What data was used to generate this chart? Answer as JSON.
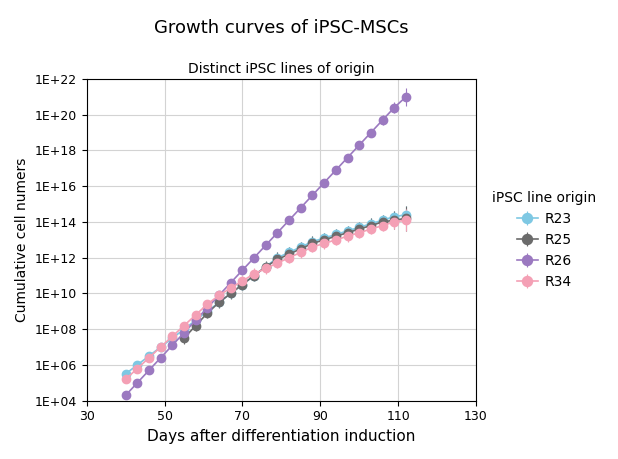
{
  "title": "Growth curves of iPSC-MSCs",
  "subtitle": "Distinct iPSC lines of origin",
  "xlabel": "Days after differentiation induction",
  "ylabel": "Cumulative cell numers",
  "xlim": [
    30,
    130
  ],
  "ylim_log": [
    4,
    22
  ],
  "xticks": [
    30,
    50,
    70,
    90,
    110,
    130
  ],
  "ytick_exponents": [
    4,
    6,
    8,
    10,
    12,
    14,
    16,
    18,
    20,
    22
  ],
  "colors": {
    "R23": "#7EC8E3",
    "R25": "#6B6B6B",
    "R26": "#9B79C0",
    "R34": "#F4A0B5"
  },
  "legend_title": "iPSC line origin",
  "lines": {
    "R23": {
      "x": [
        40,
        43,
        46,
        49,
        52,
        55,
        58,
        61,
        64,
        67,
        70,
        73,
        76,
        79,
        82,
        85,
        88,
        91,
        94,
        97,
        100,
        103,
        106,
        109,
        112
      ],
      "y_log": [
        5.5,
        6.0,
        6.5,
        7.0,
        7.5,
        8.0,
        8.5,
        9.0,
        9.5,
        10.0,
        10.5,
        11.0,
        11.5,
        12.0,
        12.3,
        12.6,
        12.9,
        13.1,
        13.3,
        13.5,
        13.7,
        13.9,
        14.1,
        14.3,
        14.4
      ],
      "yerr_log": [
        0.2,
        0.2,
        0.2,
        0.2,
        0.2,
        0.2,
        0.2,
        0.2,
        0.2,
        0.2,
        0.2,
        0.2,
        0.2,
        0.3,
        0.3,
        0.3,
        0.3,
        0.3,
        0.3,
        0.3,
        0.3,
        0.3,
        0.3,
        0.3,
        0.5
      ]
    },
    "R25": {
      "x": [
        55,
        58,
        61,
        64,
        67,
        70,
        73,
        76,
        79,
        82,
        85,
        88,
        91,
        94,
        97,
        100,
        103,
        106,
        109,
        112
      ],
      "y_log": [
        7.5,
        8.2,
        8.9,
        9.5,
        10.0,
        10.5,
        11.0,
        11.5,
        11.9,
        12.2,
        12.5,
        12.8,
        13.0,
        13.2,
        13.4,
        13.6,
        13.8,
        14.0,
        14.1,
        14.2
      ],
      "yerr_log": [
        0.3,
        0.3,
        0.3,
        0.3,
        0.3,
        0.3,
        0.3,
        0.3,
        0.4,
        0.4,
        0.4,
        0.4,
        0.4,
        0.4,
        0.4,
        0.4,
        0.4,
        0.4,
        0.5,
        0.7
      ]
    },
    "R26": {
      "x": [
        40,
        43,
        46,
        49,
        52,
        55,
        58,
        61,
        64,
        67,
        70,
        73,
        76,
        79,
        82,
        85,
        88,
        91,
        94,
        97,
        100,
        103,
        106,
        109,
        112
      ],
      "y_log": [
        4.3,
        5.0,
        5.7,
        6.4,
        7.1,
        7.8,
        8.5,
        9.2,
        9.9,
        10.6,
        11.3,
        12.0,
        12.7,
        13.4,
        14.1,
        14.8,
        15.5,
        16.2,
        16.9,
        17.6,
        18.3,
        19.0,
        19.7,
        20.4,
        21.0
      ],
      "yerr_log": [
        0.2,
        0.2,
        0.2,
        0.2,
        0.2,
        0.2,
        0.2,
        0.2,
        0.2,
        0.2,
        0.2,
        0.2,
        0.2,
        0.2,
        0.2,
        0.2,
        0.2,
        0.2,
        0.2,
        0.2,
        0.2,
        0.2,
        0.3,
        0.3,
        0.5
      ]
    },
    "R34": {
      "x": [
        40,
        43,
        46,
        49,
        52,
        55,
        58,
        61,
        64,
        67,
        70,
        73,
        76,
        79,
        82,
        85,
        88,
        91,
        94,
        97,
        100,
        103,
        106,
        109,
        112
      ],
      "y_log": [
        5.2,
        5.8,
        6.4,
        7.0,
        7.6,
        8.2,
        8.8,
        9.4,
        9.9,
        10.3,
        10.7,
        11.1,
        11.4,
        11.7,
        12.0,
        12.3,
        12.6,
        12.8,
        13.0,
        13.2,
        13.4,
        13.6,
        13.8,
        14.0,
        14.1
      ],
      "yerr_log": [
        0.2,
        0.2,
        0.2,
        0.2,
        0.2,
        0.2,
        0.2,
        0.2,
        0.2,
        0.2,
        0.3,
        0.3,
        0.3,
        0.3,
        0.3,
        0.3,
        0.3,
        0.3,
        0.3,
        0.3,
        0.3,
        0.3,
        0.3,
        0.4,
        0.6
      ]
    }
  }
}
